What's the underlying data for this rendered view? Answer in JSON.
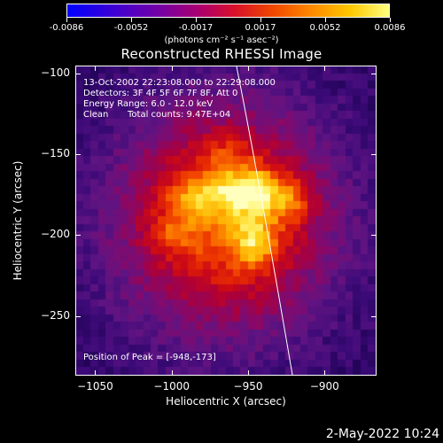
{
  "colorbar": {
    "tick_labels": [
      "-0.0086",
      "-0.0052",
      "-0.0017",
      "0.0017",
      "0.0052",
      "0.0086"
    ],
    "units": "(photons cm⁻² s⁻¹ asec⁻²)"
  },
  "chart_data": {
    "type": "heatmap",
    "title": "Reconstructed RHESSI Image",
    "xlabel": "Heliocentric X (arcsec)",
    "ylabel": "Heliocentric Y (arcsec)",
    "xlim": [
      -1063,
      -866
    ],
    "ylim": [
      -287,
      -95
    ],
    "x_ticks": [
      -1050,
      -1000,
      -950,
      -900
    ],
    "y_ticks": [
      -100,
      -150,
      -200,
      -250
    ],
    "x_tick_labels": [
      "−1050",
      "−1000",
      "−950",
      "−900"
    ],
    "y_tick_labels": [
      "−100",
      "−150",
      "−200",
      "−250"
    ],
    "color_range": [
      -0.0086,
      0.0086
    ],
    "peak": [
      -948,
      -173
    ],
    "annotations": {
      "time_range": "13-Oct-2002 22:23:08.000 to 22:29:08.000",
      "detectors": "Detectors: 3F 4F 5F 6F 7F 8F, Att 0",
      "energy": "Energy Range: 6.0 - 12.0 keV",
      "clean_label": "Clean",
      "counts": "Total counts: 9.47E+04",
      "peak_text": "Position of Peak = [-948,-173]"
    }
  },
  "timestamp": "2-May-2022 10:24"
}
